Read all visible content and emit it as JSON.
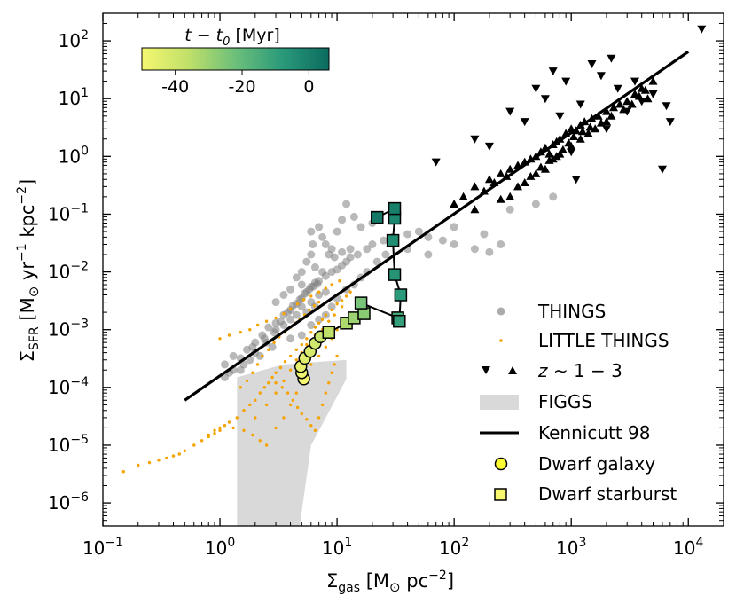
{
  "chart_data": {
    "type": "scatter",
    "x_scale": "log",
    "y_scale": "log",
    "xlim": [
      0.1,
      20000
    ],
    "ylim": [
      4e-07,
      300
    ],
    "xlabel_main": "Σ",
    "xlabel_sub": "gas",
    "xlabel_rest": " [M",
    "xlabel_sun": "⊙",
    "xlabel_unit": " pc",
    "xlabel_exp": "−2",
    "xlabel_close": "]",
    "ylabel_main": "Σ",
    "ylabel_sub": "SFR",
    "ylabel_rest": " [M",
    "ylabel_sun": "⊙",
    "ylabel_unit1": " yr",
    "ylabel_exp1": "−1",
    "ylabel_unit2": " kpc",
    "ylabel_exp2": "−2",
    "ylabel_close": "]",
    "x_ticks": [
      {
        "value": 0.1,
        "base": "10",
        "exp": "−1"
      },
      {
        "value": 1,
        "base": "10",
        "exp": "0"
      },
      {
        "value": 10,
        "base": "10",
        "exp": "1"
      },
      {
        "value": 100,
        "base": "10",
        "exp": "2"
      },
      {
        "value": 1000,
        "base": "10",
        "exp": "3"
      },
      {
        "value": 10000,
        "base": "10",
        "exp": "4"
      }
    ],
    "y_ticks": [
      {
        "value": 1e-06,
        "base": "10",
        "exp": "−6"
      },
      {
        "value": 1e-05,
        "base": "10",
        "exp": "−5"
      },
      {
        "value": 0.0001,
        "base": "10",
        "exp": "−4"
      },
      {
        "value": 0.001,
        "base": "10",
        "exp": "−3"
      },
      {
        "value": 0.01,
        "base": "10",
        "exp": "−2"
      },
      {
        "value": 0.1,
        "base": "10",
        "exp": "−1"
      },
      {
        "value": 1,
        "base": "10",
        "exp": "0"
      },
      {
        "value": 10,
        "base": "10",
        "exp": "1"
      },
      {
        "value": 100,
        "base": "10",
        "exp": "2"
      }
    ],
    "colorbar": {
      "label_pre": "t − t",
      "label_sub": "0",
      "label_post": " [Myr]",
      "range": [
        -50,
        6
      ],
      "ticks": [
        "-40",
        "-20",
        "0"
      ],
      "tick_values": [
        -40,
        -20,
        0
      ],
      "colors": [
        "#f5f770",
        "#c0e06a",
        "#6cbf7a",
        "#2a9a7a",
        "#0b6b5e"
      ]
    },
    "legend": {
      "position": "lower right",
      "items": [
        {
          "label": "THINGS",
          "marker": "circle-grey"
        },
        {
          "label": "LITTLE THINGS",
          "marker": "dot-orange"
        },
        {
          "label_pre": "z",
          "label_post": " ∼ 1 − 3",
          "marker": "triangles-black"
        },
        {
          "label": "FIGGS",
          "marker": "patch-grey"
        },
        {
          "label": "Kennicutt 98",
          "marker": "line-black"
        },
        {
          "label": "Dwarf galaxy",
          "marker": "circle-yellow"
        },
        {
          "label": "Dwarf starburst",
          "marker": "square-yellow"
        }
      ]
    },
    "kennicutt_line": [
      [
        0.5,
        6e-05
      ],
      [
        10000,
        65
      ]
    ],
    "figgs_region": [
      [
        1.4,
        4e-07
      ],
      [
        1.4,
        0.00015
      ],
      [
        3.5,
        0.00025
      ],
      [
        12,
        0.0003
      ],
      [
        12,
        0.00014
      ],
      [
        6,
        1e-05
      ],
      [
        4.8,
        4e-07
      ]
    ],
    "things": [
      [
        1.1,
        0.00015
      ],
      [
        1.3,
        0.0002
      ],
      [
        1.5,
        0.00032
      ],
      [
        1.7,
        0.00045
      ],
      [
        2.0,
        0.0006
      ],
      [
        2.3,
        0.0008
      ],
      [
        2.6,
        0.0011
      ],
      [
        3.0,
        0.0013
      ],
      [
        3.5,
        0.0018
      ],
      [
        4.0,
        0.0022
      ],
      [
        4.5,
        0.0028
      ],
      [
        5.0,
        0.0035
      ],
      [
        5.5,
        0.0045
      ],
      [
        6.0,
        0.0055
      ],
      [
        6.5,
        0.0065
      ],
      [
        7.0,
        0.007
      ],
      [
        8.0,
        0.0085
      ],
      [
        9.0,
        0.01
      ],
      [
        10,
        0.011
      ],
      [
        11,
        0.013
      ],
      [
        12,
        0.015
      ],
      [
        13,
        0.018
      ],
      [
        15,
        0.02
      ],
      [
        18,
        0.025
      ],
      [
        20,
        0.03
      ],
      [
        25,
        0.035
      ],
      [
        30,
        0.04
      ],
      [
        40,
        0.045
      ],
      [
        50,
        0.05
      ],
      [
        60,
        0.04
      ],
      [
        80,
        0.035
      ],
      [
        100,
        0.03
      ],
      [
        150,
        0.025
      ],
      [
        200,
        0.022
      ],
      [
        5,
        0.0025
      ],
      [
        6,
        0.003
      ],
      [
        7,
        0.004
      ],
      [
        8,
        0.0045
      ],
      [
        4.5,
        0.0018
      ],
      [
        5.5,
        0.002
      ],
      [
        6.5,
        0.0025
      ],
      [
        3.0,
        0.001
      ],
      [
        3.5,
        0.0012
      ],
      [
        4.0,
        0.0015
      ],
      [
        2.5,
        0.0006
      ],
      [
        2.0,
        0.0004
      ],
      [
        1.8,
        0.0003
      ],
      [
        1.5,
        0.0002
      ],
      [
        1.2,
        0.00018
      ],
      [
        1.1,
        0.00025
      ],
      [
        1.6,
        0.00025
      ],
      [
        2.2,
        0.00035
      ],
      [
        2.8,
        0.0005
      ],
      [
        4.0,
        0.0007
      ],
      [
        5.0,
        0.0008
      ],
      [
        6.0,
        0.0012
      ],
      [
        7.0,
        0.0015
      ],
      [
        8.0,
        0.0018
      ],
      [
        9.0,
        0.0025
      ],
      [
        10,
        0.0035
      ],
      [
        12,
        0.005
      ],
      [
        14,
        0.006
      ],
      [
        16,
        0.008
      ],
      [
        18,
        0.01
      ],
      [
        22,
        0.015
      ],
      [
        26,
        0.02
      ],
      [
        5.5,
        0.015
      ],
      [
        6.0,
        0.02
      ],
      [
        6.2,
        0.03
      ],
      [
        6.0,
        0.05
      ],
      [
        7.0,
        0.06
      ],
      [
        7.5,
        0.04
      ],
      [
        8.0,
        0.03
      ],
      [
        9.0,
        0.025
      ],
      [
        10,
        0.05
      ],
      [
        11,
        0.08
      ],
      [
        12,
        0.15
      ],
      [
        14,
        0.09
      ],
      [
        16,
        0.06
      ],
      [
        20,
        0.07
      ],
      [
        8.5,
        0.02
      ],
      [
        9.5,
        0.018
      ],
      [
        11,
        0.022
      ],
      [
        13,
        0.025
      ],
      [
        3.0,
        0.003
      ],
      [
        3.5,
        0.004
      ],
      [
        4.0,
        0.005
      ],
      [
        5.0,
        0.006
      ],
      [
        4.5,
        0.008
      ],
      [
        5.0,
        0.01
      ],
      [
        6.5,
        0.012
      ],
      [
        7.5,
        0.01
      ],
      [
        40,
        0.025
      ],
      [
        60,
        0.02
      ],
      [
        100,
        0.06
      ],
      [
        180,
        0.045
      ],
      [
        250,
        0.03
      ],
      [
        300,
        0.12
      ],
      [
        500,
        0.15
      ],
      [
        700,
        0.2
      ],
      [
        1.3,
        0.00035
      ],
      [
        1.9,
        0.0005
      ],
      [
        2.4,
        0.0007
      ],
      [
        2.9,
        0.0009
      ],
      [
        3.3,
        0.0014
      ],
      [
        3.8,
        0.002
      ],
      [
        4.2,
        0.0026
      ],
      [
        4.8,
        0.0033
      ],
      [
        5.3,
        0.0042
      ],
      [
        5.8,
        0.005
      ],
      [
        6.3,
        0.0056
      ],
      [
        6.8,
        0.0062
      ]
    ],
    "little_things": [
      [
        0.15,
        3.5e-06
      ],
      [
        0.2,
        4.5e-06
      ],
      [
        0.25,
        5e-06
      ],
      [
        0.3,
        5.5e-06
      ],
      [
        0.35,
        6e-06
      ],
      [
        0.4,
        6.5e-06
      ],
      [
        0.45,
        7e-06
      ],
      [
        0.5,
        8e-06
      ],
      [
        0.6,
        1e-05
      ],
      [
        0.7,
        1.2e-05
      ],
      [
        0.8,
        1.5e-05
      ],
      [
        0.9,
        1.8e-05
      ],
      [
        1.0,
        2e-05
      ],
      [
        1.1,
        2.2e-05
      ],
      [
        1.2,
        2.5e-05
      ],
      [
        1.4,
        3e-05
      ],
      [
        1.6,
        4e-05
      ],
      [
        1.8,
        5e-05
      ],
      [
        2.0,
        6e-05
      ],
      [
        2.2,
        8e-05
      ],
      [
        2.4,
        0.0001
      ],
      [
        2.6,
        0.00012
      ],
      [
        2.8,
        0.00015
      ],
      [
        3.0,
        0.00018
      ],
      [
        3.3,
        0.00022
      ],
      [
        3.6,
        0.00028
      ],
      [
        4.0,
        0.00035
      ],
      [
        4.5,
        0.00045
      ],
      [
        5.0,
        0.00055
      ],
      [
        5.5,
        0.0007
      ],
      [
        6.0,
        0.0009
      ],
      [
        6.5,
        0.0011
      ],
      [
        7.0,
        0.0013
      ],
      [
        7.5,
        0.0015
      ],
      [
        8.0,
        0.0018
      ],
      [
        9.0,
        0.0022
      ],
      [
        10,
        0.0028
      ],
      [
        11,
        0.0032
      ],
      [
        12,
        0.0038
      ],
      [
        13,
        0.0045
      ],
      [
        0.8,
        1.4e-05
      ],
      [
        0.9,
        1.6e-05
      ],
      [
        1.0,
        1.8e-05
      ],
      [
        1.3,
        2e-05
      ],
      [
        1.6,
        1.8e-05
      ],
      [
        1.9,
        1.5e-05
      ],
      [
        2.2,
        1.2e-05
      ],
      [
        2.5,
        1e-05
      ],
      [
        3.0,
        2e-05
      ],
      [
        3.5,
        3e-05
      ],
      [
        4.0,
        5e-05
      ],
      [
        4.5,
        8e-05
      ],
      [
        5.0,
        0.00012
      ],
      [
        5.5,
        0.00018
      ],
      [
        6.0,
        0.00025
      ],
      [
        7.0,
        0.00035
      ],
      [
        8.0,
        0.0005
      ],
      [
        9.0,
        0.0007
      ],
      [
        10,
        0.001
      ],
      [
        2.0,
        3e-05
      ],
      [
        2.5,
        5e-05
      ],
      [
        3.0,
        8e-05
      ],
      [
        3.5,
        0.00013
      ],
      [
        4.0,
        0.0002
      ],
      [
        4.5,
        0.0003
      ],
      [
        5.0,
        0.0004
      ],
      [
        5.5,
        0.00055
      ],
      [
        6.5,
        0.0008
      ],
      [
        7.5,
        0.001
      ],
      [
        8.5,
        0.0014
      ],
      [
        9.5,
        0.0018
      ],
      [
        11,
        0.0025
      ],
      [
        1.5,
        0.0001
      ],
      [
        1.7,
        0.00013
      ],
      [
        1.9,
        0.00018
      ],
      [
        2.1,
        0.00025
      ],
      [
        2.3,
        0.00035
      ],
      [
        2.6,
        0.00045
      ],
      [
        2.9,
        0.0006
      ],
      [
        3.2,
        0.00075
      ],
      [
        3.6,
        0.0009
      ],
      [
        4.0,
        0.0011
      ],
      [
        4.4,
        0.0013
      ],
      [
        4.8,
        0.0015
      ],
      [
        5.3,
        0.0018
      ],
      [
        5.8,
        0.0022
      ],
      [
        6.4,
        0.0026
      ],
      [
        7.0,
        0.003
      ],
      [
        1.0,
        0.0007
      ],
      [
        1.2,
        0.0008
      ],
      [
        1.5,
        0.0009
      ],
      [
        1.8,
        0.001
      ],
      [
        2.1,
        0.0012
      ],
      [
        2.5,
        0.0014
      ],
      [
        3.0,
        0.0016
      ],
      [
        3.5,
        0.0019
      ],
      [
        4.0,
        0.0023
      ],
      [
        4.6,
        0.0028
      ],
      [
        5.2,
        0.0033
      ],
      [
        6.0,
        0.0038
      ],
      [
        7.0,
        0.0045
      ],
      [
        8.0,
        0.0052
      ],
      [
        9.0,
        0.006
      ],
      [
        10.5,
        0.007
      ],
      [
        3.0,
        0.00012
      ],
      [
        3.4,
        0.0001
      ],
      [
        3.8,
        8e-05
      ],
      [
        4.2,
        6e-05
      ],
      [
        4.6,
        4.5e-05
      ],
      [
        5.0,
        3.5e-05
      ],
      [
        5.5,
        2.8e-05
      ],
      [
        6.0,
        2.2e-05
      ],
      [
        6.5,
        1.8e-05
      ],
      [
        7.0,
        3e-05
      ],
      [
        7.5,
        5e-05
      ],
      [
        8.0,
        8e-05
      ],
      [
        8.5,
        0.00012
      ],
      [
        9.0,
        0.00018
      ],
      [
        9.5,
        0.00025
      ],
      [
        10,
        0.00035
      ]
    ],
    "z13_down": [
      [
        70,
        0.8
      ],
      [
        150,
        2.0
      ],
      [
        200,
        1.5
      ],
      [
        300,
        6.0
      ],
      [
        400,
        4.0
      ],
      [
        500,
        15
      ],
      [
        600,
        10
      ],
      [
        700,
        30
      ],
      [
        800,
        5.0
      ],
      [
        900,
        20
      ],
      [
        1000,
        1.2
      ],
      [
        1200,
        8.0
      ],
      [
        1500,
        40
      ],
      [
        1800,
        25
      ],
      [
        2000,
        3.0
      ],
      [
        2500,
        15
      ],
      [
        3000,
        6.0
      ],
      [
        3500,
        20
      ],
      [
        4000,
        9.0
      ],
      [
        5000,
        12
      ],
      [
        6000,
        0.6
      ],
      [
        7000,
        4.0
      ],
      [
        13000,
        160
      ],
      [
        6500,
        7.5
      ],
      [
        2200,
        50
      ],
      [
        1100,
        0.4
      ]
    ],
    "z13_up": [
      [
        100,
        0.15
      ],
      [
        120,
        0.2
      ],
      [
        150,
        0.3
      ],
      [
        180,
        0.25
      ],
      [
        200,
        0.4
      ],
      [
        220,
        0.35
      ],
      [
        250,
        0.5
      ],
      [
        280,
        0.45
      ],
      [
        300,
        0.6
      ],
      [
        350,
        0.7
      ],
      [
        400,
        0.8
      ],
      [
        450,
        0.9
      ],
      [
        500,
        1.0
      ],
      [
        550,
        1.2
      ],
      [
        600,
        1.4
      ],
      [
        650,
        1.1
      ],
      [
        700,
        1.6
      ],
      [
        750,
        1.8
      ],
      [
        800,
        2.0
      ],
      [
        900,
        2.5
      ],
      [
        1000,
        3.0
      ],
      [
        1100,
        2.8
      ],
      [
        1200,
        3.5
      ],
      [
        1300,
        4.0
      ],
      [
        1500,
        4.5
      ],
      [
        1700,
        5.0
      ],
      [
        2000,
        6.0
      ],
      [
        2300,
        7.0
      ],
      [
        2600,
        8.0
      ],
      [
        3000,
        9.0
      ],
      [
        3500,
        12
      ],
      [
        4000,
        15
      ],
      [
        4500,
        10
      ],
      [
        5000,
        20
      ],
      [
        300,
        0.2
      ],
      [
        400,
        0.35
      ],
      [
        500,
        0.5
      ],
      [
        600,
        0.6
      ],
      [
        700,
        0.9
      ],
      [
        800,
        1.1
      ],
      [
        1000,
        1.5
      ],
      [
        1200,
        2.0
      ],
      [
        1400,
        2.5
      ],
      [
        1600,
        3.0
      ],
      [
        2000,
        4.0
      ],
      [
        150,
        0.12
      ],
      [
        250,
        0.18
      ],
      [
        350,
        0.3
      ],
      [
        450,
        0.45
      ],
      [
        550,
        0.65
      ],
      [
        650,
        0.85
      ],
      [
        750,
        1.0
      ],
      [
        850,
        1.3
      ],
      [
        950,
        1.7
      ],
      [
        1050,
        2.2
      ],
      [
        1250,
        2.7
      ],
      [
        1450,
        3.2
      ],
      [
        1800,
        3.8
      ],
      [
        2200,
        5.0
      ],
      [
        2800,
        6.5
      ],
      [
        3300,
        8.0
      ],
      [
        3800,
        11
      ],
      [
        4300,
        14
      ]
    ],
    "dwarf_galaxy": [
      {
        "x": 5.2,
        "y": 0.00014,
        "t": -50
      },
      {
        "x": 5.0,
        "y": 0.00018,
        "t": -48
      },
      {
        "x": 4.9,
        "y": 0.00023,
        "t": -46
      },
      {
        "x": 5.3,
        "y": 0.00032,
        "t": -44
      },
      {
        "x": 5.9,
        "y": 0.00042,
        "t": -42
      },
      {
        "x": 6.5,
        "y": 0.00058,
        "t": -40
      },
      {
        "x": 7.2,
        "y": 0.00075,
        "t": -38
      }
    ],
    "dwarf_starburst": [
      {
        "x": 8.5,
        "y": 0.0009,
        "t": -36
      },
      {
        "x": 12,
        "y": 0.0013,
        "t": -33
      },
      {
        "x": 14,
        "y": 0.0016,
        "t": -30
      },
      {
        "x": 17,
        "y": 0.0019,
        "t": -27
      },
      {
        "x": 16,
        "y": 0.0029,
        "t": -24
      },
      {
        "x": 33,
        "y": 0.0016,
        "t": -14
      },
      {
        "x": 34,
        "y": 0.0014,
        "t": -10
      },
      {
        "x": 35,
        "y": 0.004,
        "t": -8
      },
      {
        "x": 31,
        "y": 0.009,
        "t": -6
      },
      {
        "x": 30,
        "y": 0.035,
        "t": -4
      },
      {
        "x": 31,
        "y": 0.085,
        "t": -2
      },
      {
        "x": 31,
        "y": 0.125,
        "t": 0
      },
      {
        "x": 22,
        "y": 0.088,
        "t": 2
      }
    ]
  }
}
